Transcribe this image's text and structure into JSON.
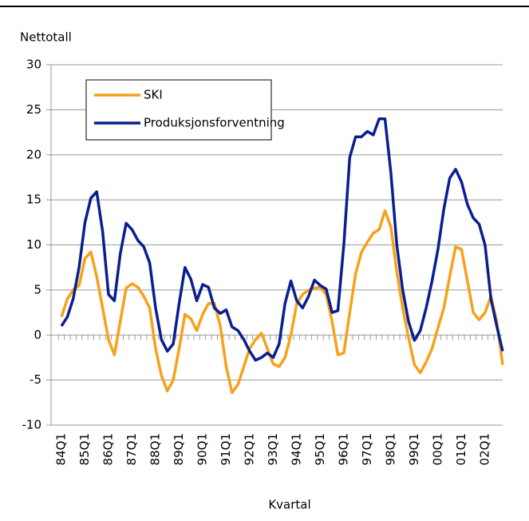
{
  "chart_data": {
    "type": "line",
    "ylabel": "Nettotall",
    "xlabel": "Kvartal",
    "categories": [
      "84Q1",
      null,
      null,
      null,
      "85Q1",
      null,
      null,
      null,
      "86Q1",
      null,
      null,
      null,
      "87Q1",
      null,
      null,
      null,
      "88Q1",
      null,
      null,
      null,
      "89Q1",
      null,
      null,
      null,
      "90Q1",
      null,
      null,
      null,
      "91Q1",
      null,
      null,
      null,
      "92Q1",
      null,
      null,
      null,
      "93Q1",
      null,
      null,
      null,
      "94Q1",
      null,
      null,
      null,
      "95Q1",
      null,
      null,
      null,
      "96Q1",
      null,
      null,
      null,
      "97Q1",
      null,
      null,
      null,
      "98Q1",
      null,
      null,
      null,
      "99Q1",
      null,
      null,
      null,
      "00Q1",
      null,
      null,
      null,
      "01Q1",
      null,
      null,
      null,
      "02Q1",
      null,
      null,
      null
    ],
    "series": [
      {
        "name": "SKI",
        "color": "#f7a11a",
        "values": [
          2,
          4,
          5,
          5.5,
          8.5,
          9.2,
          6.5,
          3,
          -0.5,
          -2.2,
          1.5,
          5.2,
          5.7,
          5.3,
          4.3,
          3,
          -1.5,
          -4.5,
          -6.2,
          -5,
          -1.5,
          2.3,
          1.8,
          0.5,
          2.3,
          3.5,
          3.5,
          1,
          -3.5,
          -6.4,
          -5.5,
          -3.5,
          -1.5,
          -0.5,
          0.2,
          -1.5,
          -3.2,
          -3.5,
          -2.5,
          0,
          3.5,
          4.5,
          5,
          5.2,
          5.3,
          4.5,
          1.5,
          -2.2,
          -2,
          2.5,
          6.8,
          9.2,
          10.3,
          11.3,
          11.7,
          13.8,
          12,
          7,
          3,
          -0.3,
          -3.3,
          -4.2,
          -3,
          -1.5,
          0.8,
          3,
          6.5,
          9.8,
          9.5,
          6,
          2.5,
          1.7,
          2.5,
          4.3,
          1.5,
          -3.3
        ]
      },
      {
        "name": "Produksjonsforventning",
        "color": "#0a1f8f",
        "values": [
          1,
          2,
          4,
          7.5,
          12.5,
          15.2,
          15.9,
          11.5,
          4.5,
          3.8,
          9,
          12.4,
          11.7,
          10.5,
          9.8,
          8,
          3,
          -0.5,
          -1.8,
          -1,
          3.5,
          7.5,
          6.2,
          3.8,
          5.6,
          5.3,
          3,
          2.4,
          2.8,
          0.9,
          0.5,
          -0.5,
          -1.8,
          -2.8,
          -2.5,
          -2,
          -2.5,
          -1,
          3.5,
          6,
          3.8,
          3,
          4.3,
          6.1,
          5.5,
          5.1,
          2.5,
          2.7,
          10,
          19.7,
          22,
          22,
          22.6,
          22.2,
          24,
          24,
          18,
          10,
          5,
          1.5,
          -0.6,
          0.5,
          3,
          6,
          9.5,
          14,
          17.4,
          18.4,
          17,
          14.5,
          13,
          12.3,
          10,
          4,
          1,
          -1.8
        ]
      }
    ],
    "ylim": [
      -10,
      30
    ],
    "yticks": [
      -10,
      -5,
      0,
      5,
      10,
      15,
      20,
      25,
      30
    ],
    "grid": true,
    "legend": "upper left"
  }
}
